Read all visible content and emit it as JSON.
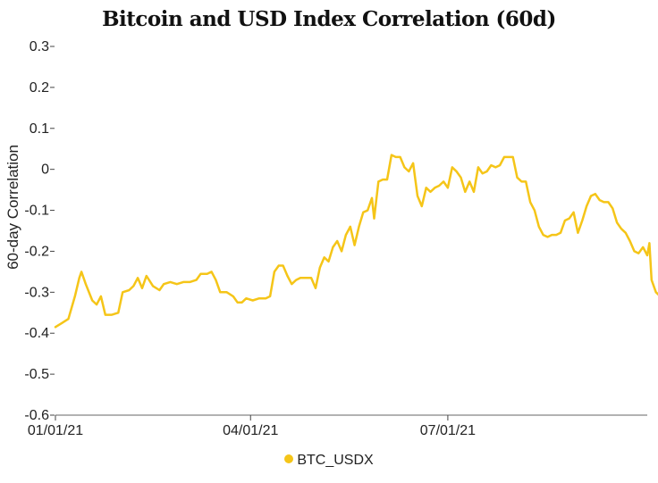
{
  "chart_data": {
    "type": "line",
    "title": "Bitcoin and USD Index Correlation (60d)",
    "ylabel": "60-day Correlation",
    "xlabel": "",
    "ylim": [
      -0.6,
      0.3
    ],
    "yticks": [
      0.3,
      0.2,
      0.1,
      0,
      -0.1,
      -0.2,
      -0.3,
      -0.4,
      -0.5,
      -0.6
    ],
    "ytick_labels": [
      "0.3",
      "0.2",
      "0.1",
      "0",
      "-0.1",
      "-0.2",
      "-0.3",
      "-0.4",
      "-0.5",
      "-0.6"
    ],
    "x_start": "2021-01-01",
    "x_end": "2021-10-01",
    "xticks": [
      {
        "date": "2021-01-01",
        "label": "01/01/21"
      },
      {
        "date": "2021-04-01",
        "label": "04/01/21"
      },
      {
        "date": "2021-07-01",
        "label": "07/01/21"
      }
    ],
    "grid": false,
    "legend_position": "bottom-center",
    "series": [
      {
        "name": "BTC_USDX",
        "color": "#f5c518",
        "points": [
          [
            "2021-01-01",
            -0.385
          ],
          [
            "2021-01-04",
            -0.375
          ],
          [
            "2021-01-07",
            -0.365
          ],
          [
            "2021-01-10",
            -0.31
          ],
          [
            "2021-01-12",
            -0.265
          ],
          [
            "2021-01-13",
            -0.25
          ],
          [
            "2021-01-15",
            -0.28
          ],
          [
            "2021-01-18",
            -0.32
          ],
          [
            "2021-01-20",
            -0.33
          ],
          [
            "2021-01-22",
            -0.31
          ],
          [
            "2021-01-24",
            -0.355
          ],
          [
            "2021-01-27",
            -0.355
          ],
          [
            "2021-01-30",
            -0.35
          ],
          [
            "2021-02-01",
            -0.3
          ],
          [
            "2021-02-04",
            -0.295
          ],
          [
            "2021-02-06",
            -0.285
          ],
          [
            "2021-02-08",
            -0.265
          ],
          [
            "2021-02-10",
            -0.29
          ],
          [
            "2021-02-12",
            -0.26
          ],
          [
            "2021-02-15",
            -0.285
          ],
          [
            "2021-02-18",
            -0.295
          ],
          [
            "2021-02-20",
            -0.28
          ],
          [
            "2021-02-23",
            -0.275
          ],
          [
            "2021-02-26",
            -0.28
          ],
          [
            "2021-03-01",
            -0.275
          ],
          [
            "2021-03-04",
            -0.275
          ],
          [
            "2021-03-07",
            -0.27
          ],
          [
            "2021-03-09",
            -0.255
          ],
          [
            "2021-03-12",
            -0.255
          ],
          [
            "2021-03-14",
            -0.25
          ],
          [
            "2021-03-16",
            -0.27
          ],
          [
            "2021-03-18",
            -0.3
          ],
          [
            "2021-03-21",
            -0.3
          ],
          [
            "2021-03-24",
            -0.31
          ],
          [
            "2021-03-26",
            -0.325
          ],
          [
            "2021-03-28",
            -0.325
          ],
          [
            "2021-03-30",
            -0.315
          ],
          [
            "2021-04-02",
            -0.32
          ],
          [
            "2021-04-05",
            -0.315
          ],
          [
            "2021-04-08",
            -0.315
          ],
          [
            "2021-04-10",
            -0.31
          ],
          [
            "2021-04-12",
            -0.25
          ],
          [
            "2021-04-14",
            -0.235
          ],
          [
            "2021-04-16",
            -0.235
          ],
          [
            "2021-04-18",
            -0.26
          ],
          [
            "2021-04-20",
            -0.28
          ],
          [
            "2021-04-22",
            -0.27
          ],
          [
            "2021-04-24",
            -0.265
          ],
          [
            "2021-04-27",
            -0.265
          ],
          [
            "2021-04-29",
            -0.265
          ],
          [
            "2021-05-01",
            -0.29
          ],
          [
            "2021-05-03",
            -0.24
          ],
          [
            "2021-05-05",
            -0.215
          ],
          [
            "2021-05-07",
            -0.225
          ],
          [
            "2021-05-09",
            -0.19
          ],
          [
            "2021-05-11",
            -0.175
          ],
          [
            "2021-05-13",
            -0.2
          ],
          [
            "2021-05-15",
            -0.16
          ],
          [
            "2021-05-17",
            -0.14
          ],
          [
            "2021-05-19",
            -0.185
          ],
          [
            "2021-05-21",
            -0.14
          ],
          [
            "2021-05-23",
            -0.105
          ],
          [
            "2021-05-25",
            -0.1
          ],
          [
            "2021-05-27",
            -0.07
          ],
          [
            "2021-05-28",
            -0.12
          ],
          [
            "2021-05-30",
            -0.03
          ],
          [
            "2021-06-01",
            -0.025
          ],
          [
            "2021-06-03",
            -0.025
          ],
          [
            "2021-06-05",
            0.035
          ],
          [
            "2021-06-07",
            0.03
          ],
          [
            "2021-06-09",
            0.03
          ],
          [
            "2021-06-11",
            0.005
          ],
          [
            "2021-06-13",
            -0.005
          ],
          [
            "2021-06-15",
            0.015
          ],
          [
            "2021-06-17",
            -0.065
          ],
          [
            "2021-06-19",
            -0.09
          ],
          [
            "2021-06-21",
            -0.045
          ],
          [
            "2021-06-23",
            -0.055
          ],
          [
            "2021-06-25",
            -0.045
          ],
          [
            "2021-06-27",
            -0.04
          ],
          [
            "2021-06-29",
            -0.03
          ],
          [
            "2021-07-01",
            -0.045
          ],
          [
            "2021-07-03",
            0.005
          ],
          [
            "2021-07-05",
            -0.005
          ],
          [
            "2021-07-07",
            -0.02
          ],
          [
            "2021-07-09",
            -0.055
          ],
          [
            "2021-07-11",
            -0.03
          ],
          [
            "2021-07-13",
            -0.055
          ],
          [
            "2021-07-15",
            0.005
          ],
          [
            "2021-07-17",
            -0.01
          ],
          [
            "2021-07-19",
            -0.005
          ],
          [
            "2021-07-21",
            0.01
          ],
          [
            "2021-07-23",
            0.005
          ],
          [
            "2021-07-25",
            0.01
          ],
          [
            "2021-07-27",
            0.03
          ],
          [
            "2021-07-29",
            0.03
          ],
          [
            "2021-07-31",
            0.03
          ],
          [
            "2021-08-02",
            -0.02
          ],
          [
            "2021-08-04",
            -0.03
          ],
          [
            "2021-08-06",
            -0.03
          ],
          [
            "2021-08-08",
            -0.08
          ],
          [
            "2021-08-10",
            -0.1
          ],
          [
            "2021-08-12",
            -0.14
          ],
          [
            "2021-08-14",
            -0.16
          ],
          [
            "2021-08-16",
            -0.165
          ],
          [
            "2021-08-18",
            -0.16
          ],
          [
            "2021-08-20",
            -0.16
          ],
          [
            "2021-08-22",
            -0.155
          ],
          [
            "2021-08-24",
            -0.125
          ],
          [
            "2021-08-26",
            -0.12
          ],
          [
            "2021-08-28",
            -0.105
          ],
          [
            "2021-08-30",
            -0.155
          ],
          [
            "2021-09-01",
            -0.125
          ],
          [
            "2021-09-03",
            -0.09
          ],
          [
            "2021-09-05",
            -0.065
          ],
          [
            "2021-09-07",
            -0.06
          ],
          [
            "2021-09-09",
            -0.075
          ],
          [
            "2021-09-11",
            -0.08
          ],
          [
            "2021-09-13",
            -0.08
          ],
          [
            "2021-09-15",
            -0.095
          ],
          [
            "2021-09-17",
            -0.13
          ],
          [
            "2021-09-19",
            -0.145
          ],
          [
            "2021-09-21",
            -0.155
          ],
          [
            "2021-09-23",
            -0.175
          ],
          [
            "2021-09-25",
            -0.2
          ],
          [
            "2021-09-27",
            -0.205
          ],
          [
            "2021-09-29",
            -0.19
          ],
          [
            "2021-09-30",
            -0.2
          ],
          [
            "2021-10-01",
            -0.21
          ],
          [
            "2021-10-02",
            -0.18
          ],
          [
            "2021-10-03",
            -0.27
          ],
          [
            "2021-10-05",
            -0.3
          ],
          [
            "2021-10-07",
            -0.31
          ],
          [
            "2021-10-09",
            -0.3
          ],
          [
            "2021-10-11",
            -0.315
          ],
          [
            "2021-10-13",
            -0.305
          ],
          [
            "2021-10-14",
            -0.3
          ],
          [
            "2021-10-16",
            -0.325
          ],
          [
            "2021-10-17",
            -0.32
          ]
        ]
      }
    ]
  }
}
